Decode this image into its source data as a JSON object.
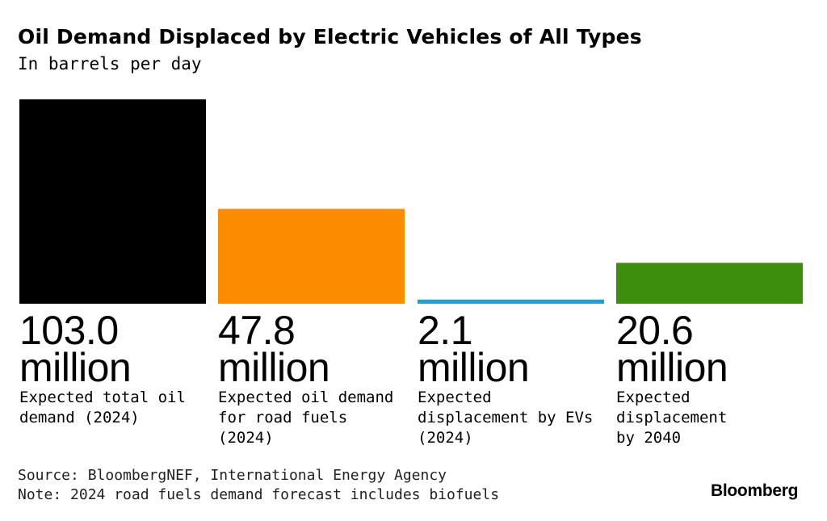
{
  "chart_data": {
    "type": "bar",
    "title": "Oil Demand Displaced by Electric Vehicles of All Types",
    "subtitle": "In barrels per day",
    "categories": [
      "Expected total oil demand (2024)",
      "Expected oil demand for road fuels (2024)",
      "Expected displacement by EVs (2024)",
      "Expected displacement by 2040"
    ],
    "values": [
      103.0,
      47.8,
      2.1,
      20.6
    ],
    "unit": "million",
    "ylim": [
      0,
      103.0
    ],
    "grid": false,
    "bars": [
      {
        "value": "103.0",
        "unit": "million",
        "desc_lines": [
          "Expected total oil",
          "demand (2024)"
        ],
        "color": "#000000"
      },
      {
        "value": "47.8",
        "unit": "million",
        "desc_lines": [
          "Expected oil demand",
          "for road fuels (2024)"
        ],
        "color": "#fb8c00"
      },
      {
        "value": "2.1",
        "unit": "million",
        "desc_lines": [
          "Expected",
          "displacement by EVs",
          "(2024)"
        ],
        "color": "#1f9fd8"
      },
      {
        "value": "20.6",
        "unit": "million",
        "desc_lines": [
          "Expected displacement",
          "by 2040"
        ],
        "color": "#3e8e0d"
      }
    ]
  },
  "footer": {
    "source": "Source: BloombergNEF, International Energy Agency",
    "note": "Note: 2024 road fuels demand forecast includes biofuels"
  },
  "brand": "Bloomberg"
}
